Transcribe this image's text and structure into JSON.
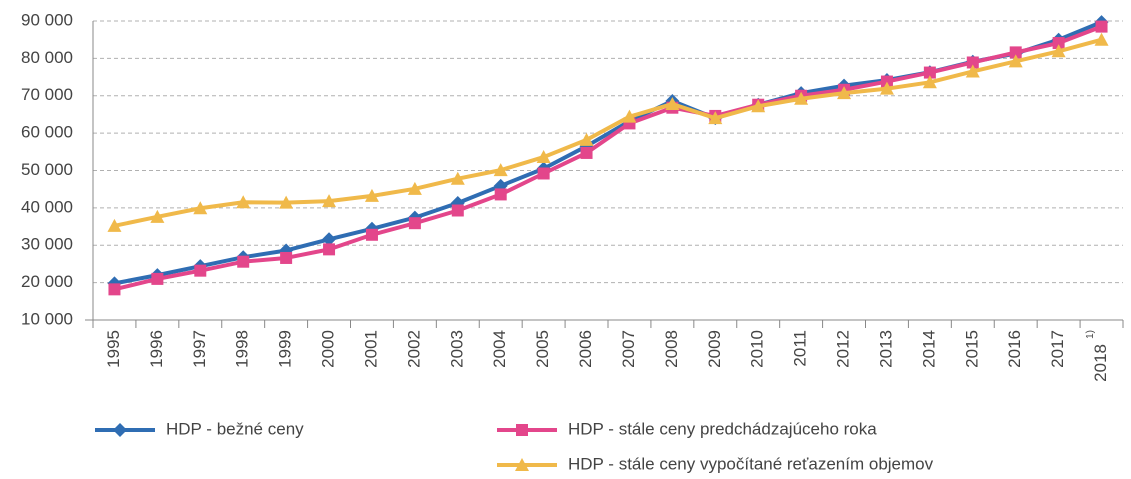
{
  "chart_data": {
    "type": "line",
    "categories": [
      "1995",
      "1996",
      "1997",
      "1998",
      "1999",
      "2000",
      "2001",
      "2002",
      "2003",
      "2004",
      "2005",
      "2006",
      "2007",
      "2008",
      "2009",
      "2010",
      "2011",
      "2012",
      "2013",
      "2014",
      "2015",
      "2016",
      "2017",
      "2018"
    ],
    "category_note": "1)",
    "series": [
      {
        "name": "HDP - bežné ceny",
        "color": "#2f6db3",
        "marker": "diamond",
        "values": [
          19800,
          22000,
          24400,
          26800,
          28600,
          31600,
          34400,
          37400,
          41300,
          45900,
          50500,
          56500,
          63200,
          68600,
          64000,
          67600,
          70700,
          72700,
          74200,
          76300,
          79100,
          81300,
          85000,
          89700
        ]
      },
      {
        "name": "HDP - stále ceny predchádzajúceho roka",
        "color": "#e3468b",
        "marker": "square",
        "values": [
          18200,
          21000,
          23200,
          25600,
          26600,
          28900,
          32800,
          35900,
          39300,
          43600,
          49200,
          54700,
          62600,
          66800,
          64600,
          67600,
          70000,
          71600,
          73800,
          76200,
          78900,
          81600,
          84100,
          88500
        ]
      },
      {
        "name": "HDP - stále ceny vypočítané reťazením objemov",
        "color": "#f0b94a",
        "marker": "triangle",
        "values": [
          35200,
          37600,
          39900,
          41500,
          41400,
          41800,
          43200,
          45100,
          47800,
          50100,
          53600,
          58200,
          64400,
          67800,
          64000,
          67200,
          69200,
          70700,
          71900,
          73600,
          76500,
          79200,
          81900,
          85000
        ]
      }
    ],
    "ylim": [
      10000,
      90000
    ],
    "yticks": [
      {
        "value": 10000,
        "label": "10 000"
      },
      {
        "value": 20000,
        "label": "20 000"
      },
      {
        "value": 30000,
        "label": "30 000"
      },
      {
        "value": 40000,
        "label": "40 000"
      },
      {
        "value": 50000,
        "label": "50 000"
      },
      {
        "value": 60000,
        "label": "60 000"
      },
      {
        "value": 70000,
        "label": "70 000"
      },
      {
        "value": 80000,
        "label": "80 000"
      },
      {
        "value": 90000,
        "label": "90 000"
      }
    ],
    "grid": true
  }
}
